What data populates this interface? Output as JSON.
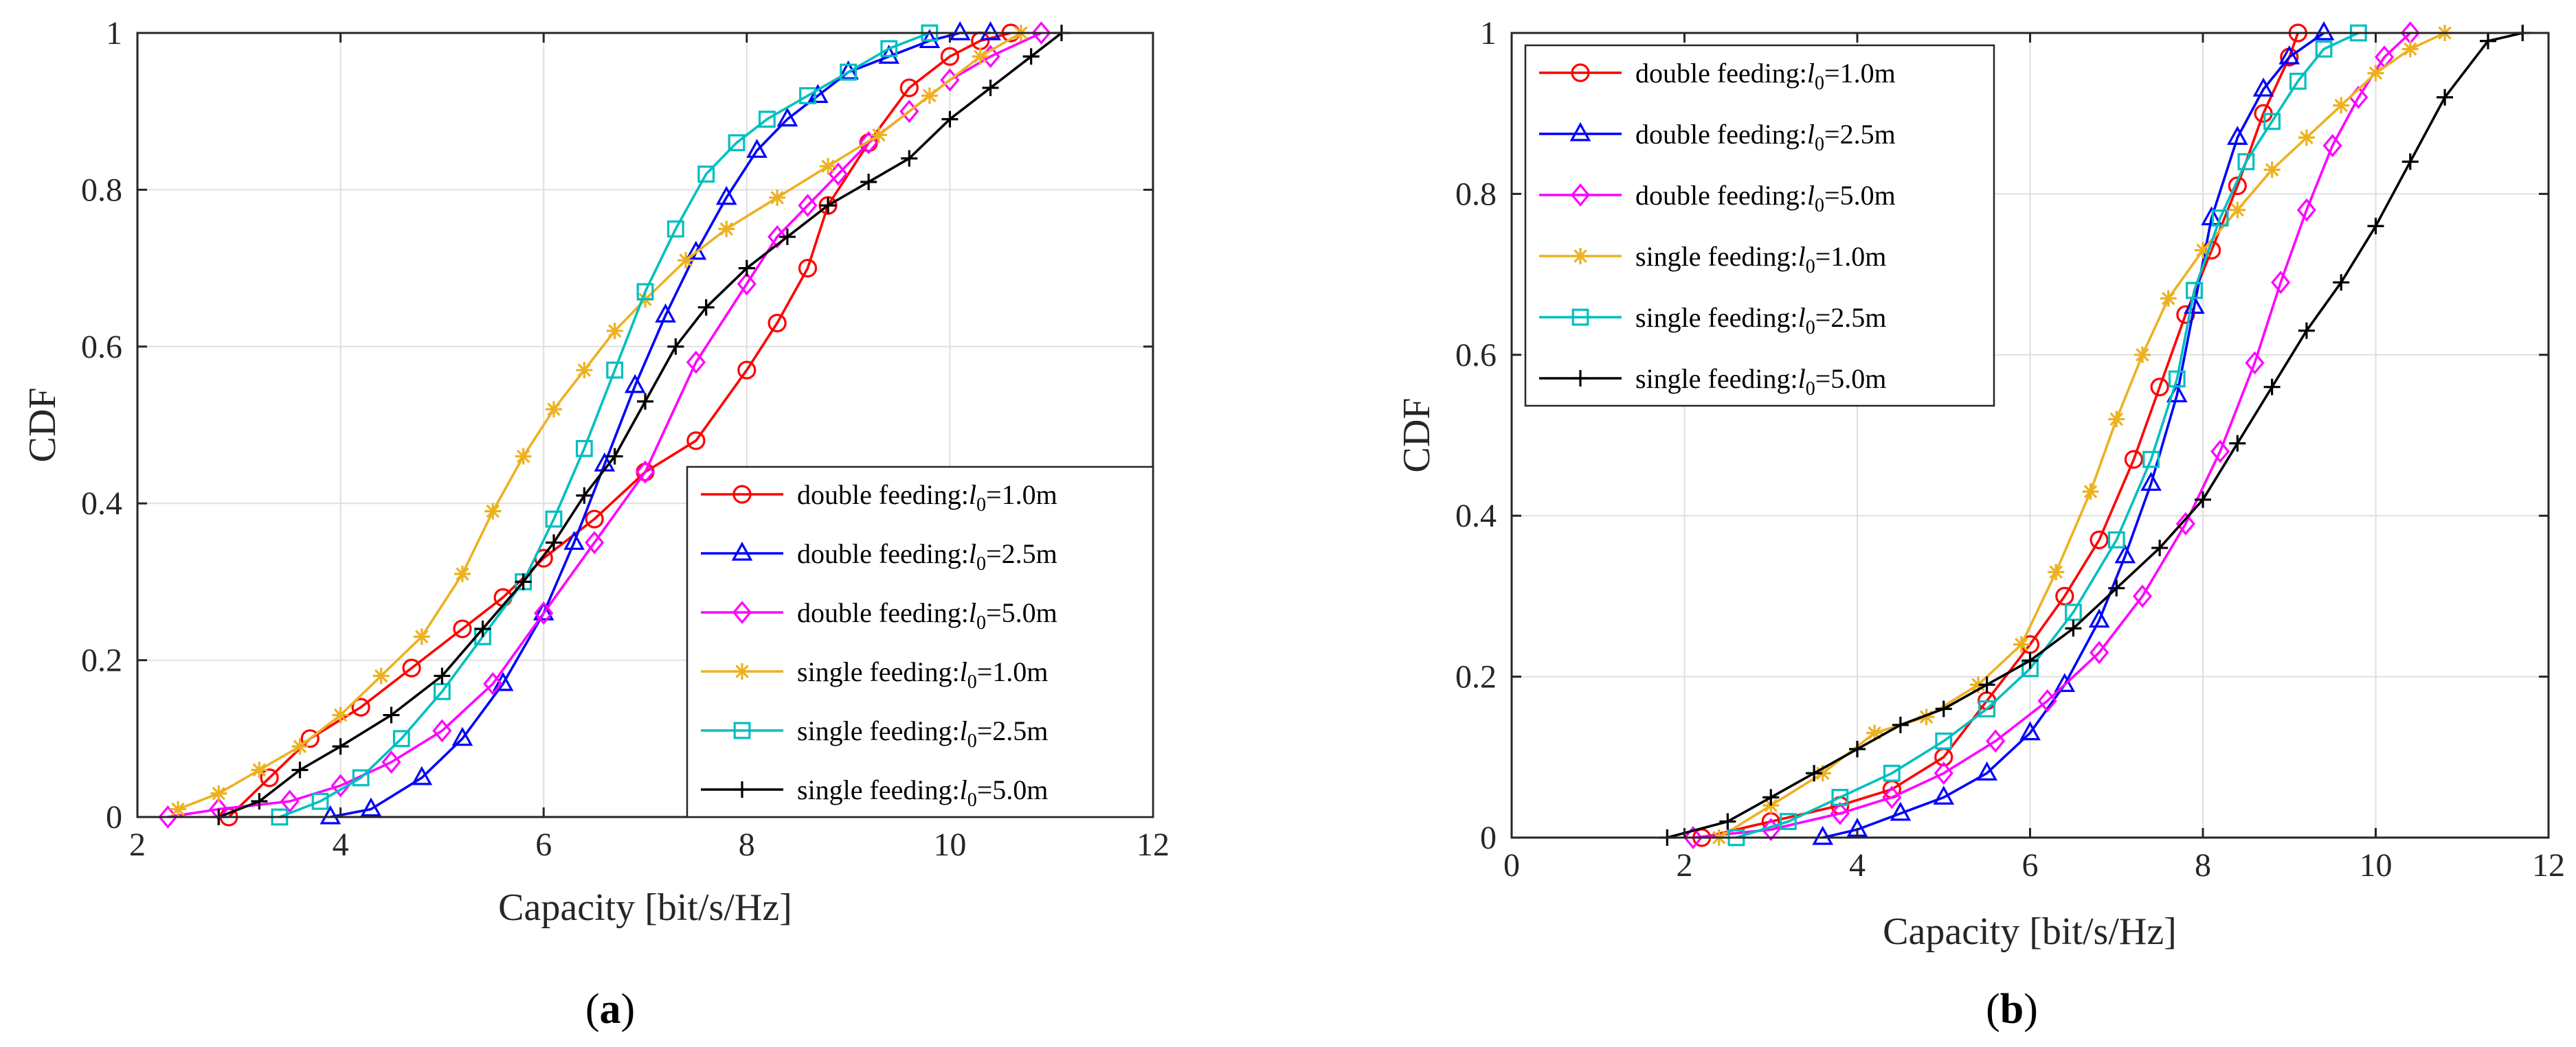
{
  "figure": {
    "legend_sub": "0",
    "series_styles": [
      {
        "color": "#ff0000",
        "marker": "circle"
      },
      {
        "color": "#0000ff",
        "marker": "triangle"
      },
      {
        "color": "#ff00ff",
        "marker": "diamond"
      },
      {
        "color": "#edb120",
        "marker": "asterisk"
      },
      {
        "color": "#00bfbf",
        "marker": "square"
      },
      {
        "color": "#000000",
        "marker": "plus"
      }
    ]
  },
  "chart_data": [
    {
      "type": "line",
      "panel": "a",
      "caption": {
        "open": "(",
        "letter": "a",
        "close": ")"
      },
      "xlabel": "Capacity [bit/s/Hz]",
      "ylabel": "CDF",
      "xlim": [
        2,
        12
      ],
      "ylim": [
        0,
        1
      ],
      "xticks": [
        "2",
        "4",
        "6",
        "8",
        "10",
        "12"
      ],
      "yticks": [
        "0",
        "0.2",
        "0.4",
        "0.6",
        "0.8",
        "1"
      ],
      "grid": true,
      "legend_position": "bottom-right",
      "series": [
        {
          "name": "double feeding:",
          "sym": "l",
          "eq": "=1.0m",
          "x": [
            2.9,
            3.3,
            3.7,
            4.2,
            4.7,
            5.2,
            5.6,
            6.0,
            6.5,
            7.0,
            7.5,
            8.0,
            8.3,
            8.6,
            8.8,
            9.2,
            9.6,
            10.0,
            10.3,
            10.6
          ],
          "y": [
            0.0,
            0.05,
            0.1,
            0.14,
            0.19,
            0.24,
            0.28,
            0.33,
            0.38,
            0.44,
            0.48,
            0.57,
            0.63,
            0.7,
            0.78,
            0.86,
            0.93,
            0.97,
            0.99,
            1.0
          ]
        },
        {
          "name": "double feeding:",
          "sym": "l",
          "eq": "=2.5m",
          "x": [
            3.9,
            4.3,
            4.8,
            5.2,
            5.6,
            6.0,
            6.3,
            6.6,
            6.9,
            7.2,
            7.5,
            7.8,
            8.1,
            8.4,
            8.7,
            9.0,
            9.4,
            9.8,
            10.1,
            10.4
          ],
          "y": [
            0.0,
            0.01,
            0.05,
            0.1,
            0.17,
            0.26,
            0.35,
            0.45,
            0.55,
            0.64,
            0.72,
            0.79,
            0.85,
            0.89,
            0.92,
            0.95,
            0.97,
            0.99,
            1.0,
            1.0
          ]
        },
        {
          "name": "double feeding:",
          "sym": "l",
          "eq": "=5.0m",
          "x": [
            2.3,
            2.8,
            3.5,
            4.0,
            4.5,
            5.0,
            5.5,
            6.0,
            6.5,
            7.0,
            7.5,
            8.0,
            8.3,
            8.6,
            8.9,
            9.2,
            9.6,
            10.0,
            10.4,
            10.9
          ],
          "y": [
            0.0,
            0.01,
            0.02,
            0.04,
            0.07,
            0.11,
            0.17,
            0.26,
            0.35,
            0.44,
            0.58,
            0.68,
            0.74,
            0.78,
            0.82,
            0.86,
            0.9,
            0.94,
            0.97,
            1.0
          ]
        },
        {
          "name": "single feeding:",
          "sym": "l",
          "eq": "=1.0m",
          "x": [
            2.4,
            2.8,
            3.2,
            3.6,
            4.0,
            4.4,
            4.8,
            5.2,
            5.5,
            5.8,
            6.1,
            6.4,
            6.7,
            7.0,
            7.4,
            7.8,
            8.3,
            8.8,
            9.3,
            9.8,
            10.3,
            10.7
          ],
          "y": [
            0.01,
            0.03,
            0.06,
            0.09,
            0.13,
            0.18,
            0.23,
            0.31,
            0.39,
            0.46,
            0.52,
            0.57,
            0.62,
            0.66,
            0.71,
            0.75,
            0.79,
            0.83,
            0.87,
            0.92,
            0.97,
            1.0
          ]
        },
        {
          "name": "single feeding:",
          "sym": "l",
          "eq": "=2.5m",
          "x": [
            3.4,
            3.8,
            4.2,
            4.6,
            5.0,
            5.4,
            5.8,
            6.1,
            6.4,
            6.7,
            7.0,
            7.3,
            7.6,
            7.9,
            8.2,
            8.6,
            9.0,
            9.4,
            9.8
          ],
          "y": [
            0.0,
            0.02,
            0.05,
            0.1,
            0.16,
            0.23,
            0.3,
            0.38,
            0.47,
            0.57,
            0.67,
            0.75,
            0.82,
            0.86,
            0.89,
            0.92,
            0.95,
            0.98,
            1.0
          ]
        },
        {
          "name": "single feeding:",
          "sym": "l",
          "eq": "=5.0m",
          "x": [
            2.8,
            3.2,
            3.6,
            4.0,
            4.5,
            5.0,
            5.4,
            5.8,
            6.1,
            6.4,
            6.7,
            7.0,
            7.3,
            7.6,
            8.0,
            8.4,
            8.8,
            9.2,
            9.6,
            10.0,
            10.4,
            10.8,
            11.1
          ],
          "y": [
            0.0,
            0.02,
            0.06,
            0.09,
            0.13,
            0.18,
            0.24,
            0.3,
            0.35,
            0.41,
            0.46,
            0.53,
            0.6,
            0.65,
            0.7,
            0.74,
            0.78,
            0.81,
            0.84,
            0.89,
            0.93,
            0.97,
            1.0
          ]
        }
      ]
    },
    {
      "type": "line",
      "panel": "b",
      "caption": {
        "open": "(",
        "letter": "b",
        "close": ")"
      },
      "xlabel": "Capacity [bit/s/Hz]",
      "ylabel": "CDF",
      "xlim": [
        0,
        12
      ],
      "ylim": [
        0,
        1
      ],
      "xticks": [
        "0",
        "2",
        "4",
        "6",
        "8",
        "10",
        "12"
      ],
      "yticks": [
        "0",
        "0.2",
        "0.4",
        "0.6",
        "0.8",
        "1"
      ],
      "grid": true,
      "legend_position": "top-left",
      "series": [
        {
          "name": "double feeding:",
          "sym": "l",
          "eq": "=1.0m",
          "x": [
            2.2,
            3.0,
            3.8,
            4.4,
            5.0,
            5.5,
            6.0,
            6.4,
            6.8,
            7.2,
            7.5,
            7.8,
            8.1,
            8.4,
            8.7,
            9.0,
            9.1
          ],
          "y": [
            0.0,
            0.02,
            0.04,
            0.06,
            0.1,
            0.17,
            0.24,
            0.3,
            0.37,
            0.47,
            0.56,
            0.65,
            0.73,
            0.81,
            0.9,
            0.97,
            1.0
          ]
        },
        {
          "name": "double feeding:",
          "sym": "l",
          "eq": "=2.5m",
          "x": [
            3.6,
            4.0,
            4.5,
            5.0,
            5.5,
            6.0,
            6.4,
            6.8,
            7.1,
            7.4,
            7.7,
            7.9,
            8.1,
            8.4,
            8.7,
            9.0,
            9.4
          ],
          "y": [
            0.0,
            0.01,
            0.03,
            0.05,
            0.08,
            0.13,
            0.19,
            0.27,
            0.35,
            0.44,
            0.55,
            0.66,
            0.77,
            0.87,
            0.93,
            0.97,
            1.0
          ]
        },
        {
          "name": "double feeding:",
          "sym": "l",
          "eq": "=5.0m",
          "x": [
            2.1,
            3.0,
            3.8,
            4.4,
            5.0,
            5.6,
            6.2,
            6.8,
            7.3,
            7.8,
            8.2,
            8.6,
            8.9,
            9.2,
            9.5,
            9.8,
            10.1,
            10.4
          ],
          "y": [
            0.0,
            0.01,
            0.03,
            0.05,
            0.08,
            0.12,
            0.17,
            0.23,
            0.3,
            0.39,
            0.48,
            0.59,
            0.69,
            0.78,
            0.86,
            0.92,
            0.97,
            1.0
          ]
        },
        {
          "name": "single feeding:",
          "sym": "l",
          "eq": "=1.0m",
          "x": [
            2.4,
            3.0,
            3.6,
            4.2,
            4.8,
            5.4,
            5.9,
            6.3,
            6.7,
            7.0,
            7.3,
            7.6,
            8.0,
            8.4,
            8.8,
            9.2,
            9.6,
            10.0,
            10.4,
            10.8
          ],
          "y": [
            0.0,
            0.04,
            0.08,
            0.13,
            0.15,
            0.19,
            0.24,
            0.33,
            0.43,
            0.52,
            0.6,
            0.67,
            0.73,
            0.78,
            0.83,
            0.87,
            0.91,
            0.95,
            0.98,
            1.0
          ]
        },
        {
          "name": "single feeding:",
          "sym": "l",
          "eq": "=2.5m",
          "x": [
            2.6,
            3.2,
            3.8,
            4.4,
            5.0,
            5.5,
            6.0,
            6.5,
            7.0,
            7.4,
            7.7,
            7.9,
            8.2,
            8.5,
            8.8,
            9.1,
            9.4,
            9.8
          ],
          "y": [
            0.0,
            0.02,
            0.05,
            0.08,
            0.12,
            0.16,
            0.21,
            0.28,
            0.37,
            0.47,
            0.57,
            0.68,
            0.77,
            0.84,
            0.89,
            0.94,
            0.98,
            1.0
          ]
        },
        {
          "name": "single feeding:",
          "sym": "l",
          "eq": "=5.0m",
          "x": [
            1.8,
            2.5,
            3.0,
            3.5,
            4.0,
            4.5,
            5.0,
            5.5,
            6.0,
            6.5,
            7.0,
            7.5,
            8.0,
            8.4,
            8.8,
            9.2,
            9.6,
            10.0,
            10.4,
            10.8,
            11.3,
            11.7
          ],
          "y": [
            0.0,
            0.02,
            0.05,
            0.08,
            0.11,
            0.14,
            0.16,
            0.19,
            0.22,
            0.26,
            0.31,
            0.36,
            0.42,
            0.49,
            0.56,
            0.63,
            0.69,
            0.76,
            0.84,
            0.92,
            0.99,
            1.0
          ]
        }
      ]
    }
  ]
}
